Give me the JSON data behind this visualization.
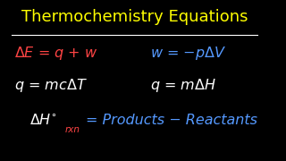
{
  "background_color": "#000000",
  "title": "Thermochemistry Equations",
  "title_color": "#FFff00",
  "title_fontsize": 13,
  "underline_color": "#ffffff",
  "line1_left_text": "$\\Delta$E = q + w",
  "line1_left_color": "#ff4444",
  "line1_right_text": "w = $-$p$\\Delta$V",
  "line1_right_color": "#5599ff",
  "line2_left_text": "q = mc$\\Delta$T",
  "line2_left_color": "#ffffff",
  "line2_right_text": "q = m$\\Delta$H",
  "line2_right_color": "#ffffff",
  "line3_main_text": "$\\Delta$H$^{\\circ}$",
  "line3_main_color": "#ffffff",
  "line3_sub_text": "rxn",
  "line3_sub_color": "#ff4444",
  "line3_rest_text": "= Products − Reactants",
  "line3_rest_color": "#5599ff",
  "fontsize": 11.5,
  "sub_fontsize": 7.5
}
